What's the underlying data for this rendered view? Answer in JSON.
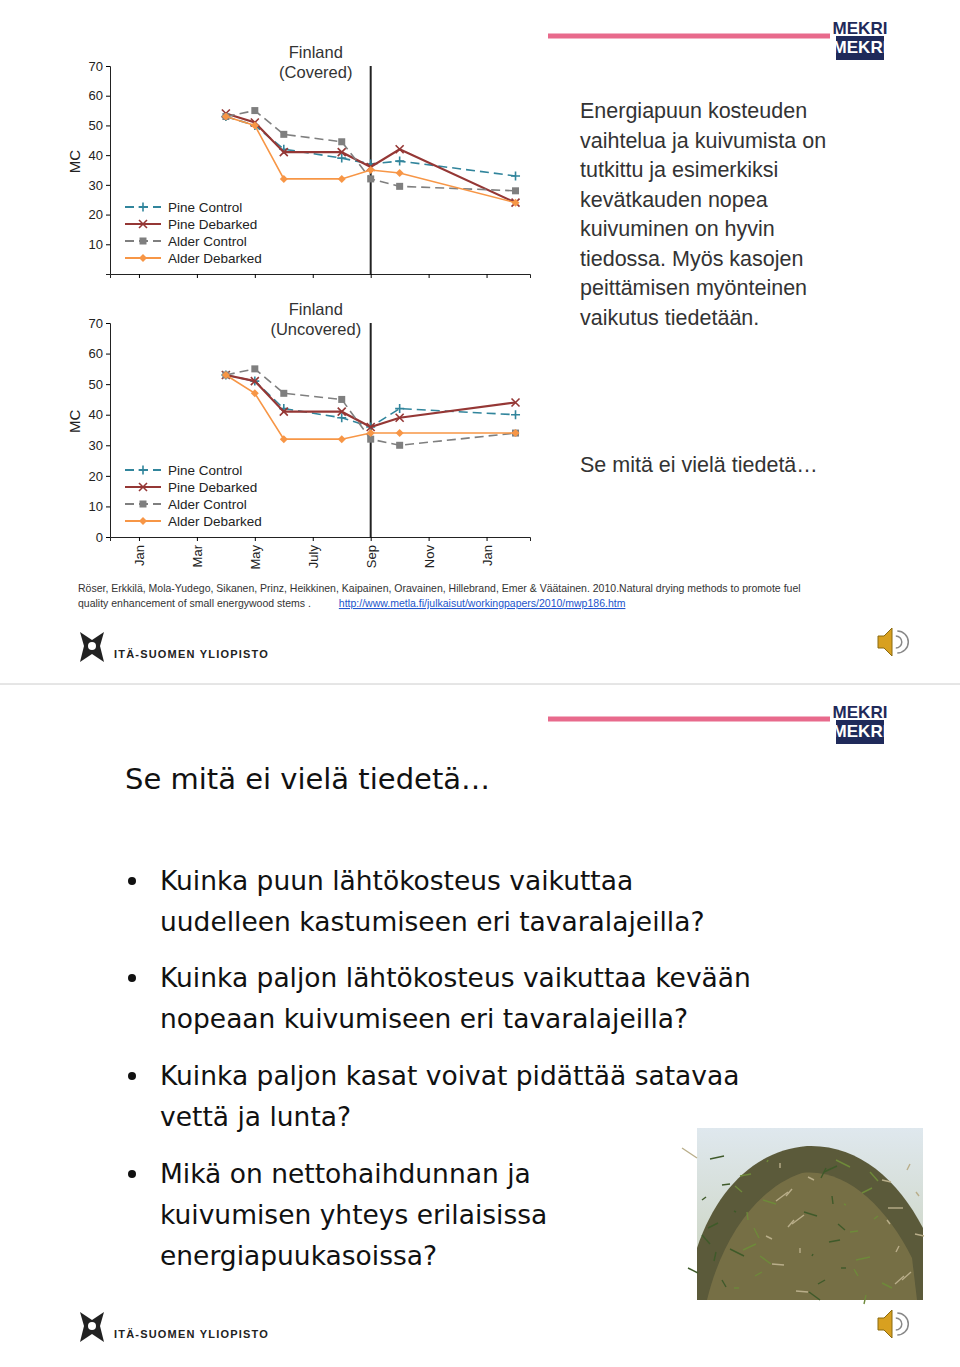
{
  "chart_data": [
    {
      "type": "line",
      "title": "Finland (Covered)",
      "ylabel": "MC",
      "x": [
        3,
        4,
        5,
        7,
        8,
        9,
        13
      ],
      "xlim": [
        -1,
        13.5
      ],
      "xticks": [
        0,
        2,
        4,
        6,
        8,
        10,
        12
      ],
      "ylim": [
        0,
        70
      ],
      "yticks": [
        10,
        20,
        30,
        40,
        50,
        60,
        70
      ],
      "tick_labels": "y",
      "legend": "lower left",
      "vline": 8,
      "series": [
        {
          "name": "Pine Control",
          "color": "#31859c",
          "marker": "plus",
          "line_style": "dashed",
          "values": [
            53,
            50,
            42,
            39,
            37,
            38,
            33
          ]
        },
        {
          "name": "Pine Debarked",
          "color": "#953735",
          "marker": "x",
          "line_style": "solid",
          "values": [
            54,
            51,
            41,
            41,
            36,
            42,
            24
          ]
        },
        {
          "name": "Alder Control",
          "color": "#7f7f7f",
          "marker": "square",
          "line_style": "dashed",
          "values": [
            53,
            55,
            47,
            44.5,
            32,
            29.5,
            28
          ]
        },
        {
          "name": "Alder Debarked",
          "color": "#f79646",
          "marker": "diamond",
          "line_style": "solid",
          "values": [
            53,
            50,
            32,
            32,
            35,
            34,
            24
          ]
        }
      ]
    },
    {
      "type": "line",
      "title": "Finland (Uncovered)",
      "ylabel": "MC",
      "x": [
        3,
        4,
        5,
        7,
        8,
        9,
        13
      ],
      "xlim": [
        -1,
        13.5
      ],
      "xticks": [
        {
          "value": 0,
          "label": "Jan"
        },
        {
          "value": 2,
          "label": "Mar"
        },
        {
          "value": 4,
          "label": "May"
        },
        {
          "value": 6,
          "label": "July"
        },
        {
          "value": 8,
          "label": "Sep"
        },
        {
          "value": 10,
          "label": "Nov"
        },
        {
          "value": 12,
          "label": "Jan"
        }
      ],
      "ylim": [
        0,
        70
      ],
      "yticks": [
        0,
        10,
        20,
        30,
        40,
        50,
        60,
        70
      ],
      "legend": "lower left",
      "vline": 8,
      "series": [
        {
          "name": "Pine Control",
          "color": "#31859c",
          "marker": "plus",
          "line_style": "dashed",
          "values": [
            53,
            51,
            42,
            39,
            36,
            42,
            40
          ]
        },
        {
          "name": "Pine Debarked",
          "color": "#953735",
          "marker": "x",
          "line_style": "solid",
          "values": [
            53,
            51,
            41,
            41,
            36,
            39,
            44
          ]
        },
        {
          "name": "Alder Control",
          "color": "#7f7f7f",
          "marker": "square",
          "line_style": "dashed",
          "values": [
            53,
            55,
            47,
            45,
            32,
            30,
            34
          ]
        },
        {
          "name": "Alder Debarked",
          "color": "#f79646",
          "marker": "diamond",
          "line_style": "solid",
          "values": [
            53,
            47,
            32,
            32,
            34,
            34,
            34
          ]
        }
      ]
    }
  ],
  "slide1": {
    "logo": "MEKRI",
    "text_lines": [
      "Energiapuun kosteuden",
      "vaihtelua ja kuivumista on",
      "tutkittu ja esimerkiksi",
      "kevätkauden nopea",
      "kuivuminen on hyvin",
      "tiedossa. Myös kasojen",
      "peittämisen myönteinen",
      "vaikutus tiedetään."
    ],
    "subheading": "Se mitä ei vielä tiedetä…",
    "citation": [
      "Röser, Erkkilä, Mola-Yudego, Sikanen, Prinz, Heikkinen, Kaipainen, Oravainen, Hillebrand, Emer & Väätainen. 2010.Natural drying methods to promote fuel",
      "quality enhancement of small energywood stems ."
    ],
    "citation_url": "http://www.metla.fi/julkaisut/workingpapers/2010/mwp186.htm",
    "university": "ITÄ-SUOMEN YLIOPISTO"
  },
  "slide2": {
    "logo": "MEKRI",
    "heading": "Se mitä ei vielä tiedetä…",
    "bullets": [
      [
        "Kuinka puun lähtökosteus vaikuttaa",
        "uudelleen kastumiseen eri tavaralajeilla?"
      ],
      [
        "Kuinka paljon lähtökosteus vaikuttaa kevään",
        "nopeaan kuivumiseen eri tavaralajeilla?"
      ],
      [
        "Kuinka paljon kasat voivat pidättää satavaa",
        "vettä ja lunta?"
      ],
      [
        "Mikä on nettohaihdunnan ja",
        "kuivumisen yhteys erilaisissa",
        "energiapuukasoissa?"
      ]
    ],
    "university": "ITÄ-SUOMEN YLIOPISTO"
  }
}
